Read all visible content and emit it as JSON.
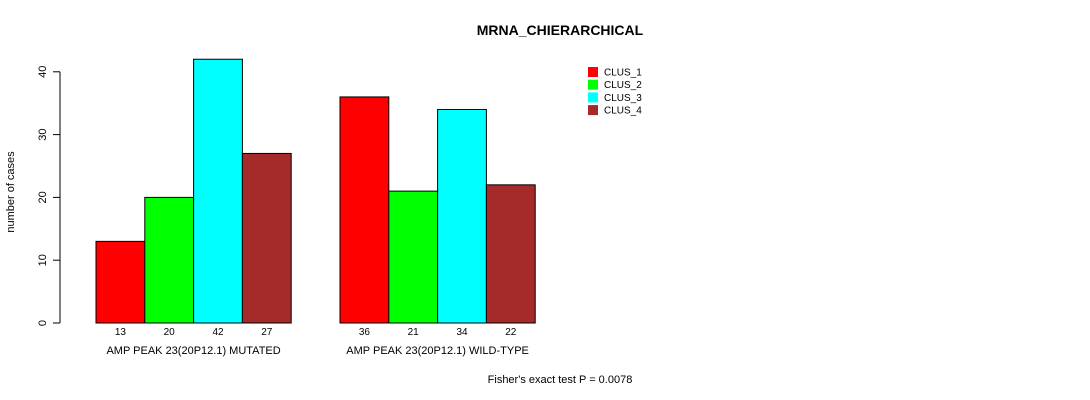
{
  "chart_data": {
    "type": "bar",
    "title": "MRNA_CHIERARCHICAL",
    "ylabel": "number of cases",
    "xlabel": "",
    "ylim": [
      0,
      40
    ],
    "yticks": [
      0,
      10,
      20,
      30,
      40
    ],
    "groups": [
      "AMP PEAK 23(20P12.1) MUTATED",
      "AMP PEAK 23(20P12.1) WILD-TYPE"
    ],
    "series": [
      {
        "name": "CLUS_1",
        "color": "#ff0000",
        "values": [
          13,
          36
        ]
      },
      {
        "name": "CLUS_2",
        "color": "#00ff00",
        "values": [
          20,
          21
        ]
      },
      {
        "name": "CLUS_3",
        "color": "#00ffff",
        "values": [
          42,
          34
        ]
      },
      {
        "name": "CLUS_4",
        "color": "#a52a2a",
        "values": [
          27,
          22
        ]
      }
    ],
    "bar_labels": [
      [
        "13",
        "20",
        "42",
        "27"
      ],
      [
        "36",
        "21",
        "34",
        "22"
      ]
    ],
    "legend_position": "top-right",
    "grid": false,
    "footnote": "Fisher's exact test P = 0.0078"
  }
}
